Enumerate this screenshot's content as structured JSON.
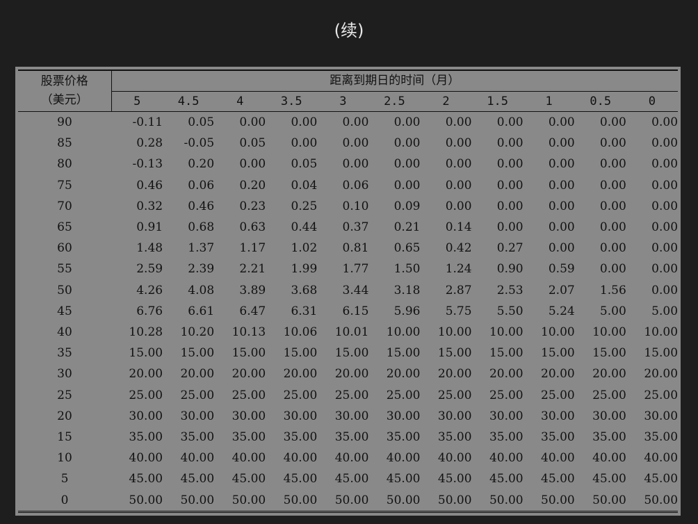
{
  "caption": "(续)",
  "table": {
    "stub_header_line1": "股票价格",
    "stub_header_line2": "（美元）",
    "group_header": "距离到期日的时间（月）",
    "columns": [
      "5",
      "4.5",
      "4",
      "3.5",
      "3",
      "2.5",
      "2",
      "1.5",
      "1",
      "0.5",
      "0"
    ],
    "rows": [
      {
        "price": "90",
        "values": [
          "-0.11",
          "0.05",
          "0.00",
          "0.00",
          "0.00",
          "0.00",
          "0.00",
          "0.00",
          "0.00",
          "0.00",
          "0.00"
        ]
      },
      {
        "price": "85",
        "values": [
          "0.28",
          "-0.05",
          "0.05",
          "0.00",
          "0.00",
          "0.00",
          "0.00",
          "0.00",
          "0.00",
          "0.00",
          "0.00"
        ]
      },
      {
        "price": "80",
        "values": [
          "-0.13",
          "0.20",
          "0.00",
          "0.05",
          "0.00",
          "0.00",
          "0.00",
          "0.00",
          "0.00",
          "0.00",
          "0.00"
        ]
      },
      {
        "price": "75",
        "values": [
          "0.46",
          "0.06",
          "0.20",
          "0.04",
          "0.06",
          "0.00",
          "0.00",
          "0.00",
          "0.00",
          "0.00",
          "0.00"
        ]
      },
      {
        "price": "70",
        "values": [
          "0.32",
          "0.46",
          "0.23",
          "0.25",
          "0.10",
          "0.09",
          "0.00",
          "0.00",
          "0.00",
          "0.00",
          "0.00"
        ]
      },
      {
        "price": "65",
        "values": [
          "0.91",
          "0.68",
          "0.63",
          "0.44",
          "0.37",
          "0.21",
          "0.14",
          "0.00",
          "0.00",
          "0.00",
          "0.00"
        ]
      },
      {
        "price": "60",
        "values": [
          "1.48",
          "1.37",
          "1.17",
          "1.02",
          "0.81",
          "0.65",
          "0.42",
          "0.27",
          "0.00",
          "0.00",
          "0.00"
        ]
      },
      {
        "price": "55",
        "values": [
          "2.59",
          "2.39",
          "2.21",
          "1.99",
          "1.77",
          "1.50",
          "1.24",
          "0.90",
          "0.59",
          "0.00",
          "0.00"
        ]
      },
      {
        "price": "50",
        "values": [
          "4.26",
          "4.08",
          "3.89",
          "3.68",
          "3.44",
          "3.18",
          "2.87",
          "2.53",
          "2.07",
          "1.56",
          "0.00"
        ]
      },
      {
        "price": "45",
        "values": [
          "6.76",
          "6.61",
          "6.47",
          "6.31",
          "6.15",
          "5.96",
          "5.75",
          "5.50",
          "5.24",
          "5.00",
          "5.00"
        ]
      },
      {
        "price": "40",
        "values": [
          "10.28",
          "10.20",
          "10.13",
          "10.06",
          "10.01",
          "10.00",
          "10.00",
          "10.00",
          "10.00",
          "10.00",
          "10.00"
        ]
      },
      {
        "price": "35",
        "values": [
          "15.00",
          "15.00",
          "15.00",
          "15.00",
          "15.00",
          "15.00",
          "15.00",
          "15.00",
          "15.00",
          "15.00",
          "15.00"
        ]
      },
      {
        "price": "30",
        "values": [
          "20.00",
          "20.00",
          "20.00",
          "20.00",
          "20.00",
          "20.00",
          "20.00",
          "20.00",
          "20.00",
          "20.00",
          "20.00"
        ]
      },
      {
        "price": "25",
        "values": [
          "25.00",
          "25.00",
          "25.00",
          "25.00",
          "25.00",
          "25.00",
          "25.00",
          "25.00",
          "25.00",
          "25.00",
          "25.00"
        ]
      },
      {
        "price": "20",
        "values": [
          "30.00",
          "30.00",
          "30.00",
          "30.00",
          "30.00",
          "30.00",
          "30.00",
          "30.00",
          "30.00",
          "30.00",
          "30.00"
        ]
      },
      {
        "price": "15",
        "values": [
          "35.00",
          "35.00",
          "35.00",
          "35.00",
          "35.00",
          "35.00",
          "35.00",
          "35.00",
          "35.00",
          "35.00",
          "35.00"
        ]
      },
      {
        "price": "10",
        "values": [
          "40.00",
          "40.00",
          "40.00",
          "40.00",
          "40.00",
          "40.00",
          "40.00",
          "40.00",
          "40.00",
          "40.00",
          "40.00"
        ]
      },
      {
        "price": "5",
        "values": [
          "45.00",
          "45.00",
          "45.00",
          "45.00",
          "45.00",
          "45.00",
          "45.00",
          "45.00",
          "45.00",
          "45.00",
          "45.00"
        ]
      },
      {
        "price": "0",
        "values": [
          "50.00",
          "50.00",
          "50.00",
          "50.00",
          "50.00",
          "50.00",
          "50.00",
          "50.00",
          "50.00",
          "50.00",
          "50.00"
        ]
      }
    ]
  }
}
